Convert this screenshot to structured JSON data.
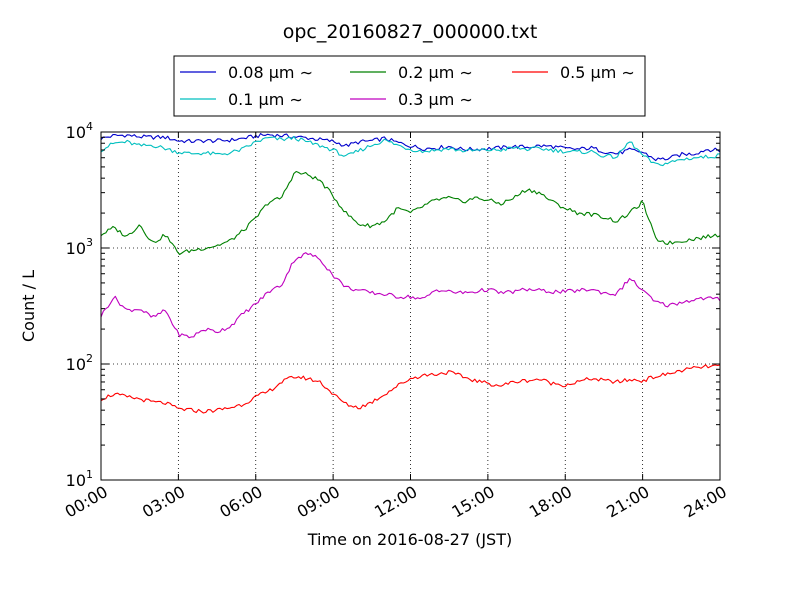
{
  "chart_data": {
    "type": "line",
    "title": "opc_20160827_000000.txt",
    "xlabel": "Time on 2016-08-27 (JST)",
    "ylabel": "Count / L",
    "y_scale": "log",
    "ylim_exponents": [
      1,
      4
    ],
    "x_unit": "hours (JST)",
    "xlim": [
      0,
      24
    ],
    "x_ticks": [
      0,
      3,
      6,
      9,
      12,
      15,
      18,
      21,
      24
    ],
    "x_tick_labels": [
      "00:00",
      "03:00",
      "06:00",
      "09:00",
      "12:00",
      "15:00",
      "18:00",
      "21:00",
      "24:00"
    ],
    "y_tick_base": "10",
    "y_tick_exponents": [
      "1",
      "2",
      "3",
      "4"
    ],
    "grid": true,
    "legend": {
      "placement": "top-center",
      "columns": 3,
      "unit_suffix": "μm ∼"
    },
    "series": [
      {
        "name": "0.08",
        "color": "#0000cc",
        "x": [
          0,
          0.5,
          1,
          1.5,
          2,
          2.5,
          3,
          3.5,
          4,
          4.5,
          5,
          5.5,
          6,
          6.5,
          7,
          7.5,
          8,
          8.5,
          9,
          9.5,
          10,
          10.5,
          11,
          11.5,
          12,
          12.5,
          13,
          13.5,
          14,
          14.5,
          15,
          15.5,
          16,
          16.5,
          17,
          17.5,
          18,
          18.5,
          19,
          19.5,
          20,
          20.5,
          21,
          21.5,
          22,
          22.5,
          23,
          23.5,
          24
        ],
        "y": [
          8800,
          9300,
          9400,
          9100,
          9000,
          9000,
          8400,
          8300,
          8400,
          8400,
          8500,
          8800,
          9200,
          9500,
          9300,
          9100,
          8900,
          8600,
          8300,
          7600,
          8200,
          8400,
          8800,
          8100,
          7600,
          7200,
          7300,
          7500,
          7100,
          7100,
          7200,
          7300,
          7500,
          7400,
          7600,
          7500,
          7200,
          7100,
          7300,
          6800,
          6500,
          7000,
          6700,
          5800,
          5900,
          6400,
          6500,
          7100,
          6900
        ]
      },
      {
        "name": "0.1",
        "color": "#00bfbf",
        "x": [
          0,
          0.5,
          1,
          1.5,
          2,
          2.5,
          3,
          3.5,
          4,
          4.5,
          5,
          5.5,
          6,
          6.5,
          7,
          7.5,
          8,
          8.5,
          9,
          9.5,
          10,
          10.5,
          11,
          11.5,
          12,
          12.5,
          13,
          13.5,
          14,
          14.5,
          15,
          15.5,
          16,
          16.5,
          17,
          17.5,
          18,
          18.5,
          19,
          19.5,
          20,
          20.5,
          21,
          21.5,
          22,
          22.5,
          23,
          23.5,
          24
        ],
        "y": [
          7000,
          8000,
          8200,
          7600,
          7700,
          7200,
          6700,
          6500,
          6600,
          6400,
          6600,
          7100,
          8200,
          8900,
          8600,
          8900,
          8200,
          7600,
          7000,
          6100,
          6900,
          7700,
          8500,
          7700,
          7100,
          6800,
          7000,
          7200,
          6900,
          6900,
          7000,
          7000,
          7300,
          7100,
          7200,
          7000,
          6800,
          6700,
          6800,
          6200,
          6100,
          8300,
          6300,
          5200,
          5400,
          5800,
          6000,
          6100,
          6300
        ]
      },
      {
        "name": "0.2",
        "color": "#008000",
        "x": [
          0,
          0.5,
          1,
          1.5,
          2,
          2.5,
          3,
          3.5,
          4,
          4.5,
          5,
          5.5,
          6,
          6.5,
          7,
          7.5,
          8,
          8.5,
          9,
          9.5,
          10,
          10.5,
          11,
          11.5,
          12,
          12.5,
          13,
          13.5,
          14,
          14.5,
          15,
          15.5,
          16,
          16.5,
          17,
          17.5,
          18,
          18.5,
          19,
          19.5,
          20,
          20.5,
          21,
          21.5,
          22,
          22.5,
          23,
          23.5,
          24
        ],
        "y": [
          1300,
          1500,
          1250,
          1600,
          1100,
          1300,
          900,
          950,
          1000,
          1050,
          1150,
          1400,
          1800,
          2500,
          2700,
          4500,
          4300,
          3800,
          2800,
          2000,
          1600,
          1550,
          1700,
          2200,
          2000,
          2300,
          2600,
          2700,
          2500,
          2700,
          2600,
          2400,
          2700,
          3200,
          3000,
          2500,
          2200,
          2000,
          1950,
          1850,
          1700,
          2000,
          2500,
          1200,
          1100,
          1150,
          1200,
          1250,
          1300
        ]
      },
      {
        "name": "0.3",
        "color": "#bf00bf",
        "x": [
          0,
          0.5,
          1,
          1.5,
          2,
          2.5,
          3,
          3.5,
          4,
          4.5,
          5,
          5.5,
          6,
          6.5,
          7,
          7.5,
          8,
          8.5,
          9,
          9.5,
          10,
          10.5,
          11,
          11.5,
          12,
          12.5,
          13,
          13.5,
          14,
          14.5,
          15,
          15.5,
          16,
          16.5,
          17,
          17.5,
          18,
          18.5,
          19,
          19.5,
          20,
          20.5,
          21,
          21.5,
          22,
          22.5,
          23,
          23.5,
          24
        ],
        "y": [
          260,
          380,
          290,
          300,
          250,
          290,
          180,
          170,
          200,
          190,
          210,
          270,
          330,
          420,
          480,
          800,
          900,
          800,
          580,
          460,
          430,
          410,
          400,
          380,
          380,
          360,
          440,
          420,
          410,
          420,
          440,
          410,
          420,
          440,
          430,
          420,
          420,
          430,
          440,
          410,
          400,
          550,
          430,
          340,
          320,
          340,
          360,
          370,
          360
        ]
      },
      {
        "name": "0.5",
        "color": "#ff0000",
        "x": [
          0,
          0.5,
          1,
          1.5,
          2,
          2.5,
          3,
          3.5,
          4,
          4.5,
          5,
          5.5,
          6,
          6.5,
          7,
          7.5,
          8,
          8.5,
          9,
          9.5,
          10,
          10.5,
          11,
          11.5,
          12,
          12.5,
          13,
          13.5,
          14,
          14.5,
          15,
          15.5,
          16,
          16.5,
          17,
          17.5,
          18,
          18.5,
          19,
          19.5,
          20,
          20.5,
          21,
          21.5,
          22,
          22.5,
          23,
          23.5,
          24
        ],
        "y": [
          50,
          55,
          52,
          50,
          47,
          46,
          41,
          40,
          39,
          40,
          42,
          45,
          52,
          58,
          70,
          78,
          75,
          70,
          55,
          45,
          42,
          47,
          55,
          65,
          75,
          80,
          82,
          85,
          78,
          72,
          68,
          65,
          70,
          72,
          74,
          68,
          66,
          70,
          75,
          72,
          70,
          73,
          72,
          78,
          82,
          88,
          92,
          95,
          96
        ]
      }
    ]
  }
}
